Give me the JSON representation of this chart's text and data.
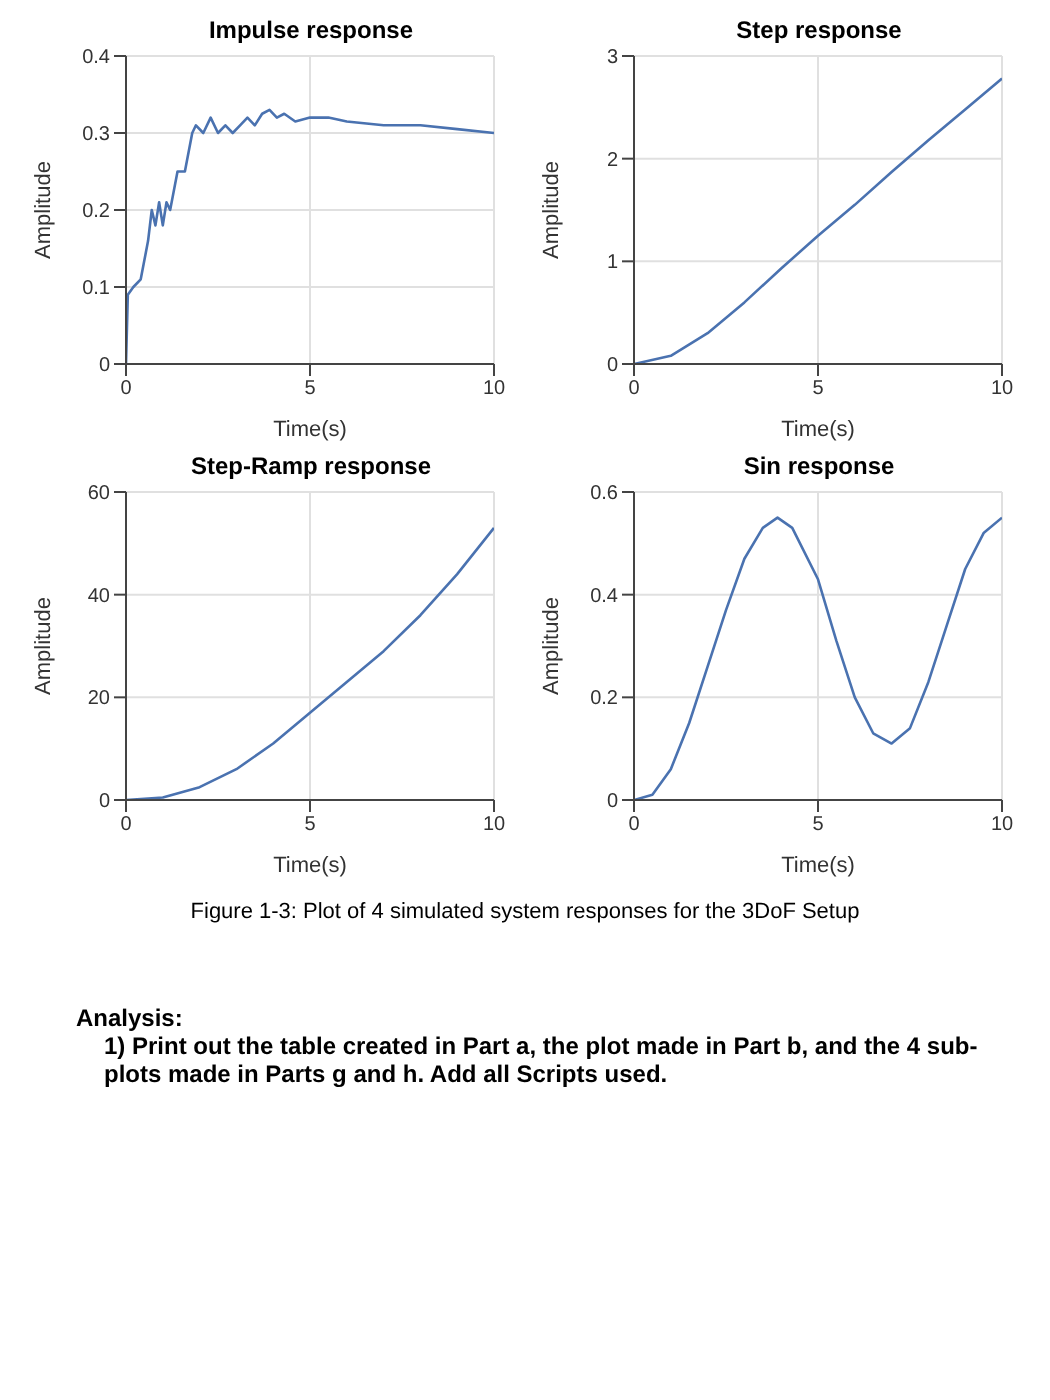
{
  "chart_data": [
    {
      "type": "line",
      "title": "Impulse response",
      "xlabel": "Time(s)",
      "ylabel": "Amplitude",
      "x": [
        0,
        0.05,
        0.2,
        0.4,
        0.6,
        0.7,
        0.8,
        0.9,
        1.0,
        1.1,
        1.2,
        1.4,
        1.6,
        1.8,
        1.9,
        2.1,
        2.3,
        2.5,
        2.7,
        2.9,
        3.1,
        3.3,
        3.5,
        3.7,
        3.9,
        4.1,
        4.3,
        4.6,
        5,
        5.5,
        6,
        7,
        8,
        9,
        10
      ],
      "series": [
        {
          "color": "#4a72b0",
          "values": [
            0,
            0.09,
            0.1,
            0.11,
            0.16,
            0.2,
            0.18,
            0.21,
            0.18,
            0.21,
            0.2,
            0.25,
            0.25,
            0.3,
            0.31,
            0.3,
            0.32,
            0.3,
            0.31,
            0.3,
            0.31,
            0.32,
            0.31,
            0.325,
            0.33,
            0.32,
            0.325,
            0.315,
            0.32,
            0.32,
            0.315,
            0.31,
            0.31,
            0.305,
            0.3
          ]
        }
      ],
      "xlim": [
        0,
        10
      ],
      "xticks": [
        0,
        5,
        10
      ],
      "ylim": [
        0,
        0.4
      ],
      "yticks": [
        0,
        0.1,
        0.2,
        0.3,
        0.4
      ],
      "grid": true,
      "marker": "none",
      "line_style": "solid"
    },
    {
      "type": "line",
      "title": "Step response",
      "xlabel": "Time(s)",
      "ylabel": "Amplitude",
      "x": [
        0,
        1,
        2,
        3,
        4,
        5,
        6,
        7,
        8,
        9,
        10
      ],
      "series": [
        {
          "color": "#4a72b0",
          "values": [
            0,
            0.08,
            0.3,
            0.6,
            0.93,
            1.25,
            1.55,
            1.87,
            2.18,
            2.48,
            2.78
          ]
        }
      ],
      "xlim": [
        0,
        10
      ],
      "xticks": [
        0,
        5,
        10
      ],
      "ylim": [
        0,
        3
      ],
      "yticks": [
        0,
        1,
        2,
        3
      ],
      "grid": true,
      "marker": "none",
      "line_style": "solid"
    },
    {
      "type": "line",
      "title": "Step-Ramp response",
      "xlabel": "Time(s)",
      "ylabel": "Amplitude",
      "x": [
        0,
        1,
        2,
        3,
        4,
        5,
        6,
        7,
        8,
        9,
        10
      ],
      "series": [
        {
          "color": "#4a72b0",
          "values": [
            0,
            0.5,
            2.5,
            6,
            11,
            17,
            23,
            29,
            36,
            44,
            53
          ]
        }
      ],
      "xlim": [
        0,
        10
      ],
      "xticks": [
        0,
        5,
        10
      ],
      "ylim": [
        0,
        60
      ],
      "yticks": [
        0,
        20,
        40,
        60
      ],
      "grid": true,
      "marker": "none",
      "line_style": "solid"
    },
    {
      "type": "line",
      "title": "Sin response",
      "xlabel": "Time(s)",
      "ylabel": "Amplitude",
      "x": [
        0,
        0.5,
        1,
        1.5,
        2,
        2.5,
        3,
        3.5,
        3.9,
        4.3,
        5,
        5.5,
        6,
        6.5,
        7,
        7.5,
        8,
        8.5,
        9,
        9.5,
        10
      ],
      "series": [
        {
          "color": "#4a72b0",
          "values": [
            0,
            0.01,
            0.06,
            0.15,
            0.26,
            0.37,
            0.47,
            0.53,
            0.55,
            0.53,
            0.43,
            0.31,
            0.2,
            0.13,
            0.11,
            0.14,
            0.23,
            0.34,
            0.45,
            0.52,
            0.55
          ]
        }
      ],
      "xlim": [
        0,
        10
      ],
      "xticks": [
        0,
        5,
        10
      ],
      "ylim": [
        0,
        0.6
      ],
      "yticks": [
        0,
        0.2,
        0.4,
        0.6
      ],
      "grid": true,
      "marker": "none",
      "line_style": "solid",
      "annotations": [
        "Figure 1-3: Plot of 4 simulated system responses for the 3DoF Setup",
        "Analysis:",
        "1) Print out the table created in Part a, the plot made in Part b, and the 4 sub-plots made in Parts g and h. Add all Scripts used."
      ]
    }
  ]
}
